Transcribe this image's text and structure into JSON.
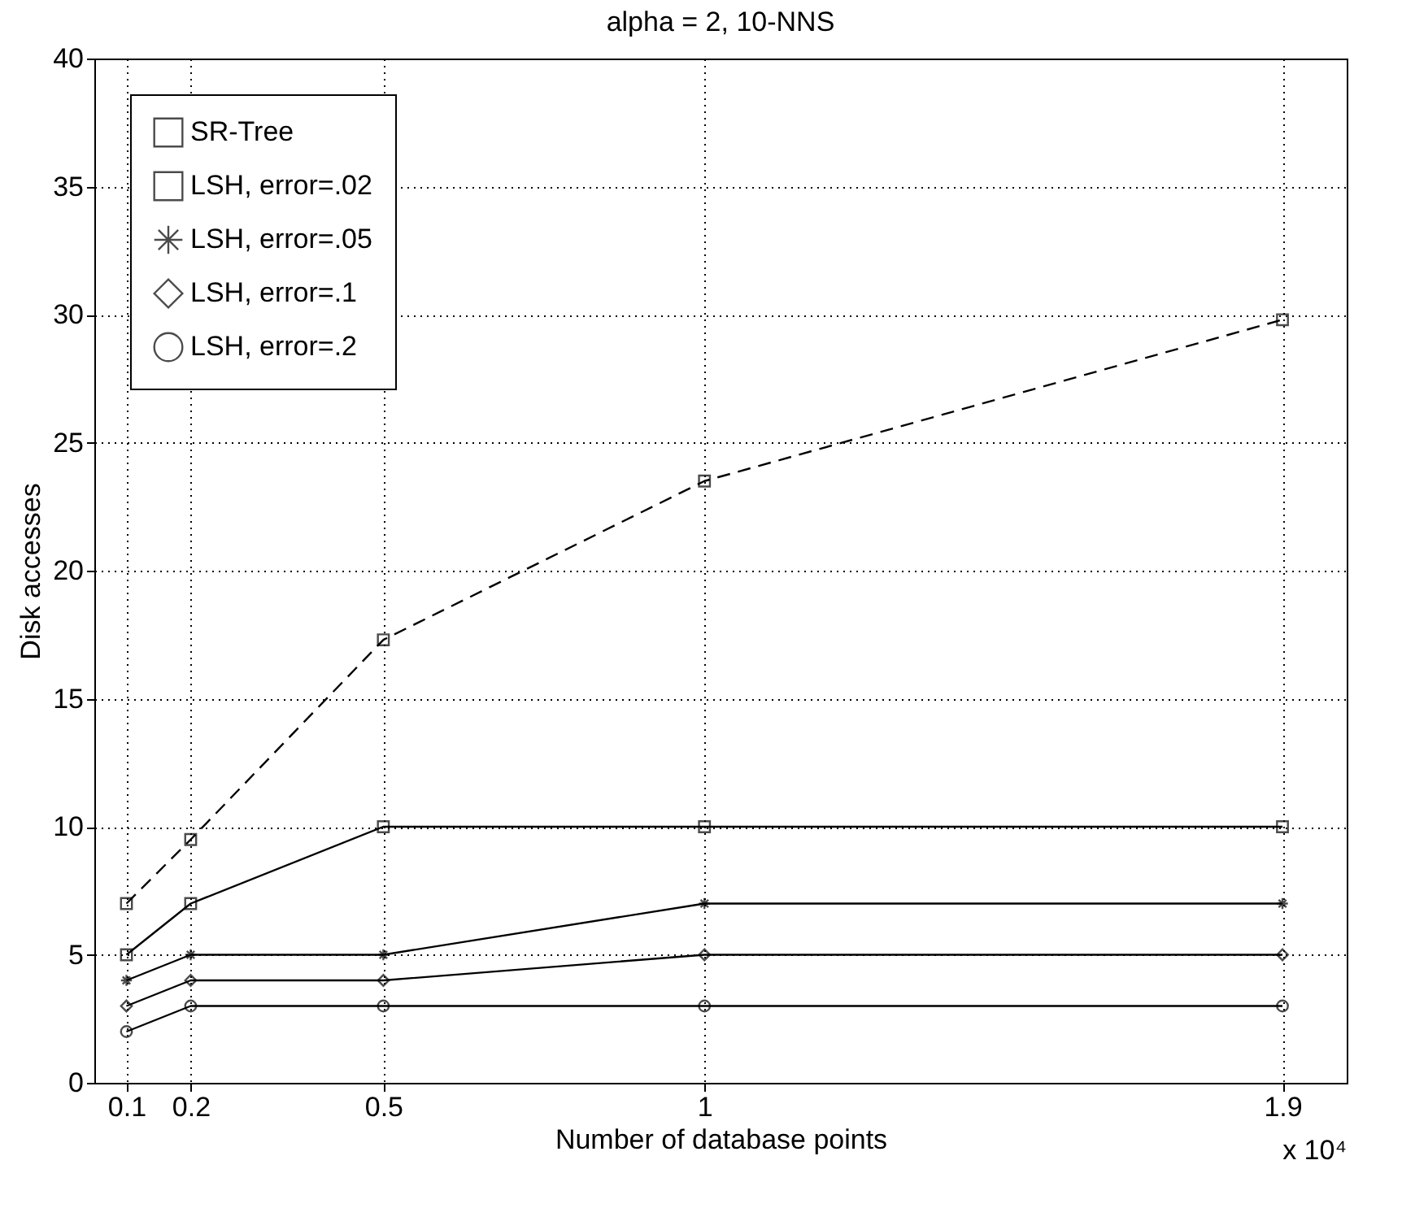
{
  "chart_data": {
    "type": "line",
    "title": "alpha = 2, 10-NNS",
    "xlabel": "Number of database points",
    "ylabel": "Disk accesses",
    "annotations": [
      "x 10⁴"
    ],
    "x": [
      0.1,
      0.2,
      0.5,
      1,
      1.9
    ],
    "series": [
      {
        "name": "SR-Tree",
        "color": "#000000",
        "values": [
          7,
          9.5,
          17.3,
          23.5,
          29.8
        ],
        "marker": "square",
        "line_style": "dashed"
      },
      {
        "name": "LSH, error=.02",
        "color": "#000000",
        "values": [
          5,
          7,
          10,
          10,
          10
        ],
        "marker": "square",
        "line_style": "solid"
      },
      {
        "name": "LSH, error=.05",
        "color": "#000000",
        "values": [
          4,
          5,
          5,
          7,
          7
        ],
        "marker": "cross",
        "line_style": "solid"
      },
      {
        "name": "LSH, error=.1",
        "color": "#000000",
        "values": [
          3,
          4,
          4,
          5,
          5
        ],
        "marker": "diamond",
        "line_style": "solid"
      },
      {
        "name": "LSH, error=.2",
        "color": "#000000",
        "values": [
          2,
          3,
          3,
          3,
          3
        ],
        "marker": "circle",
        "line_style": "solid"
      }
    ],
    "xlim": [
      0.05,
      2
    ],
    "xticks": [
      0.1,
      0.2,
      0.5,
      1,
      1.9
    ],
    "ylim": [
      0,
      40
    ],
    "yticks": [
      0,
      5,
      10,
      15,
      20,
      25,
      30,
      35,
      40
    ],
    "grid": true,
    "legend": "top left"
  }
}
